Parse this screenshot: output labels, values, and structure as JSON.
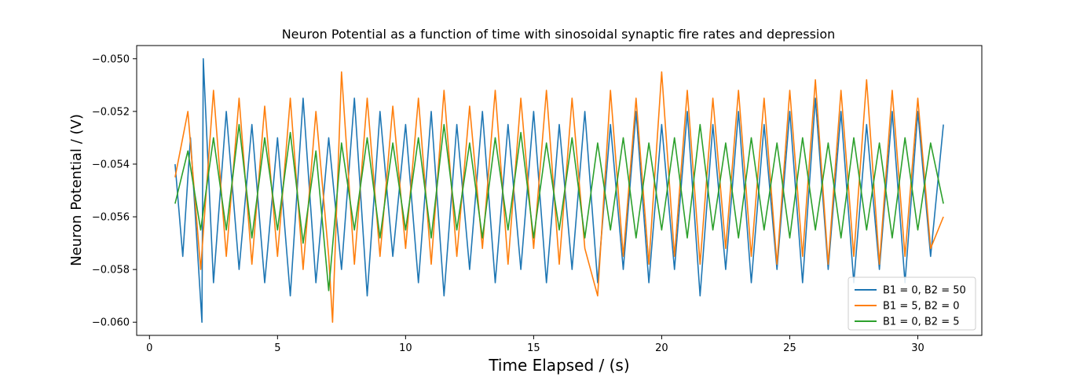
{
  "chart_data": {
    "type": "line",
    "title": "Neuron Potential as a function of time with sinosoidal synaptic fire rates and depression",
    "xlabel": "Time Elapsed / (s)",
    "ylabel": "Neuron Potential / (V)",
    "xlim": [
      -0.5,
      32.5
    ],
    "ylim": [
      -0.0605,
      -0.0495
    ],
    "xticks": [
      0,
      5,
      10,
      15,
      20,
      25,
      30
    ],
    "xtick_labels": [
      "0",
      "5",
      "10",
      "15",
      "20",
      "25",
      "30"
    ],
    "yticks": [
      -0.06,
      -0.058,
      -0.056,
      -0.054,
      -0.052,
      -0.05
    ],
    "ytick_labels": [
      "−0.060",
      "−0.058",
      "−0.056",
      "−0.054",
      "−0.052",
      "−0.050"
    ],
    "grid": false,
    "legend_position": "bottom-right",
    "series": [
      {
        "name": "B1 = 0, B2 = 50",
        "color": "#1f77b4",
        "x": [
          1.0,
          1.3,
          1.6,
          2.05,
          2.1,
          2.5,
          3.0,
          3.5,
          4.0,
          4.5,
          5.0,
          5.5,
          6.0,
          6.5,
          7.0,
          7.5,
          8.0,
          8.5,
          9.0,
          9.5,
          10.0,
          10.5,
          11.0,
          11.5,
          12.0,
          12.5,
          13.0,
          13.5,
          14.0,
          14.5,
          15.0,
          15.5,
          16.0,
          16.5,
          17.0,
          17.5,
          18.0,
          18.5,
          19.0,
          19.5,
          20.0,
          20.5,
          21.0,
          21.5,
          22.0,
          22.5,
          23.0,
          23.5,
          24.0,
          24.5,
          25.0,
          25.5,
          26.0,
          26.5,
          27.0,
          27.5,
          28.0,
          28.5,
          29.0,
          29.5,
          30.0,
          30.5,
          31.0
        ],
        "y": [
          -0.054,
          -0.0575,
          -0.053,
          -0.06,
          -0.05,
          -0.0585,
          -0.052,
          -0.058,
          -0.0525,
          -0.0585,
          -0.053,
          -0.059,
          -0.0515,
          -0.0585,
          -0.053,
          -0.058,
          -0.0515,
          -0.059,
          -0.052,
          -0.0575,
          -0.0525,
          -0.0585,
          -0.052,
          -0.059,
          -0.0525,
          -0.058,
          -0.052,
          -0.0585,
          -0.0525,
          -0.058,
          -0.052,
          -0.0585,
          -0.0525,
          -0.058,
          -0.052,
          -0.0585,
          -0.0525,
          -0.058,
          -0.052,
          -0.0585,
          -0.0525,
          -0.058,
          -0.052,
          -0.059,
          -0.0525,
          -0.058,
          -0.052,
          -0.0585,
          -0.0525,
          -0.058,
          -0.052,
          -0.0585,
          -0.0515,
          -0.058,
          -0.052,
          -0.0585,
          -0.0525,
          -0.058,
          -0.052,
          -0.0585,
          -0.052,
          -0.0575,
          -0.0525
        ]
      },
      {
        "name": "B1 = 5, B2 = 0",
        "color": "#ff7f0e",
        "x": [
          1.0,
          1.5,
          2.0,
          2.5,
          3.0,
          3.5,
          4.0,
          4.5,
          5.0,
          5.5,
          6.0,
          6.5,
          7.0,
          7.15,
          7.5,
          8.0,
          8.5,
          9.0,
          9.5,
          10.0,
          10.5,
          11.0,
          11.5,
          12.0,
          12.5,
          13.0,
          13.5,
          14.0,
          14.5,
          15.0,
          15.5,
          16.0,
          16.5,
          17.0,
          17.5,
          18.0,
          18.5,
          19.0,
          19.5,
          20.0,
          20.5,
          21.0,
          21.5,
          22.0,
          22.5,
          23.0,
          23.5,
          24.0,
          24.5,
          25.0,
          25.5,
          26.0,
          26.5,
          27.0,
          27.5,
          28.0,
          28.5,
          29.0,
          29.5,
          30.0,
          30.5,
          31.0
        ],
        "y": [
          -0.0545,
          -0.052,
          -0.058,
          -0.0512,
          -0.0575,
          -0.0515,
          -0.0578,
          -0.0518,
          -0.0575,
          -0.0515,
          -0.058,
          -0.052,
          -0.0575,
          -0.06,
          -0.0505,
          -0.0578,
          -0.0515,
          -0.0575,
          -0.0518,
          -0.0572,
          -0.0515,
          -0.0578,
          -0.0512,
          -0.0575,
          -0.0518,
          -0.0572,
          -0.0512,
          -0.0578,
          -0.0515,
          -0.0572,
          -0.0512,
          -0.0578,
          -0.0515,
          -0.0572,
          -0.059,
          -0.0512,
          -0.0575,
          -0.0515,
          -0.0578,
          -0.0505,
          -0.0575,
          -0.0512,
          -0.0578,
          -0.0515,
          -0.0572,
          -0.0512,
          -0.0575,
          -0.0515,
          -0.0578,
          -0.0512,
          -0.0575,
          -0.0508,
          -0.0578,
          -0.0512,
          -0.0575,
          -0.0508,
          -0.0578,
          -0.0512,
          -0.0575,
          -0.0515,
          -0.0572,
          -0.056
        ]
      },
      {
        "name": "B1 = 0, B2 = 5",
        "color": "#2ca02c",
        "x": [
          1.0,
          1.5,
          2.0,
          2.5,
          3.0,
          3.5,
          4.0,
          4.5,
          5.0,
          5.5,
          6.0,
          6.5,
          7.0,
          7.5,
          8.0,
          8.5,
          9.0,
          9.5,
          10.0,
          10.5,
          11.0,
          11.5,
          12.0,
          12.5,
          13.0,
          13.5,
          14.0,
          14.5,
          15.0,
          15.5,
          16.0,
          16.5,
          17.0,
          17.5,
          18.0,
          18.5,
          19.0,
          19.5,
          20.0,
          20.5,
          21.0,
          21.5,
          22.0,
          22.5,
          23.0,
          23.5,
          24.0,
          24.5,
          25.0,
          25.5,
          26.0,
          26.5,
          27.0,
          27.5,
          28.0,
          28.5,
          29.0,
          29.5,
          30.0,
          30.5,
          31.0
        ],
        "y": [
          -0.0555,
          -0.0535,
          -0.0565,
          -0.053,
          -0.0565,
          -0.0525,
          -0.0568,
          -0.053,
          -0.0565,
          -0.0528,
          -0.057,
          -0.0535,
          -0.0588,
          -0.0532,
          -0.0565,
          -0.053,
          -0.0568,
          -0.0532,
          -0.0565,
          -0.053,
          -0.0568,
          -0.0525,
          -0.0565,
          -0.0532,
          -0.0568,
          -0.053,
          -0.0565,
          -0.0528,
          -0.0568,
          -0.0532,
          -0.0565,
          -0.053,
          -0.0568,
          -0.0532,
          -0.0565,
          -0.053,
          -0.0568,
          -0.0532,
          -0.0565,
          -0.053,
          -0.0568,
          -0.0525,
          -0.0565,
          -0.0532,
          -0.0568,
          -0.053,
          -0.0565,
          -0.0532,
          -0.0568,
          -0.053,
          -0.0565,
          -0.0532,
          -0.0568,
          -0.053,
          -0.0565,
          -0.0532,
          -0.0568,
          -0.053,
          -0.0565,
          -0.0532,
          -0.0555
        ]
      }
    ]
  }
}
